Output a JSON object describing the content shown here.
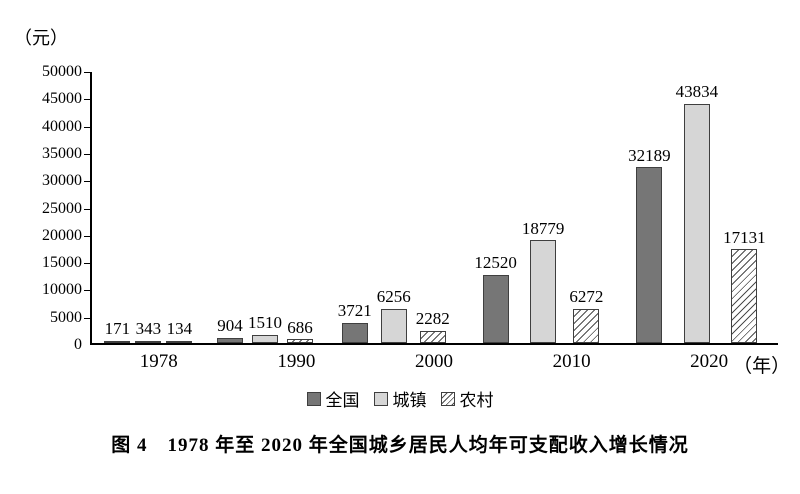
{
  "chart_data": {
    "type": "bar",
    "title": "图 4　1978 年至 2020 年全国城乡居民人均年可支配收入增长情况",
    "ylabel": "（元）",
    "xlabel": "",
    "x_suffix": "（年）",
    "categories": [
      "1978",
      "1990",
      "2000",
      "2010",
      "2020"
    ],
    "series": [
      {
        "name": "全国",
        "style": "solid-dark",
        "values": [
          171,
          904,
          3721,
          12520,
          32189
        ]
      },
      {
        "name": "城镇",
        "style": "solid-light",
        "values": [
          343,
          1510,
          6256,
          18779,
          43834
        ]
      },
      {
        "name": "农村",
        "style": "hatched",
        "values": [
          134,
          686,
          2282,
          6272,
          17131
        ]
      }
    ],
    "ylim": [
      0,
      50000
    ],
    "ytick_step": 5000,
    "yticks": [
      0,
      5000,
      10000,
      15000,
      20000,
      25000,
      30000,
      35000,
      40000,
      45000,
      50000
    ],
    "grid": false,
    "legend_position": "bottom",
    "colors": {
      "series_national": "#767676",
      "series_urban": "#d6d6d6",
      "series_rural_bg": "#ffffff",
      "hatch_line": "#4d4d4d",
      "axis": "#000000",
      "text": "#000000",
      "background": "#ffffff"
    }
  }
}
